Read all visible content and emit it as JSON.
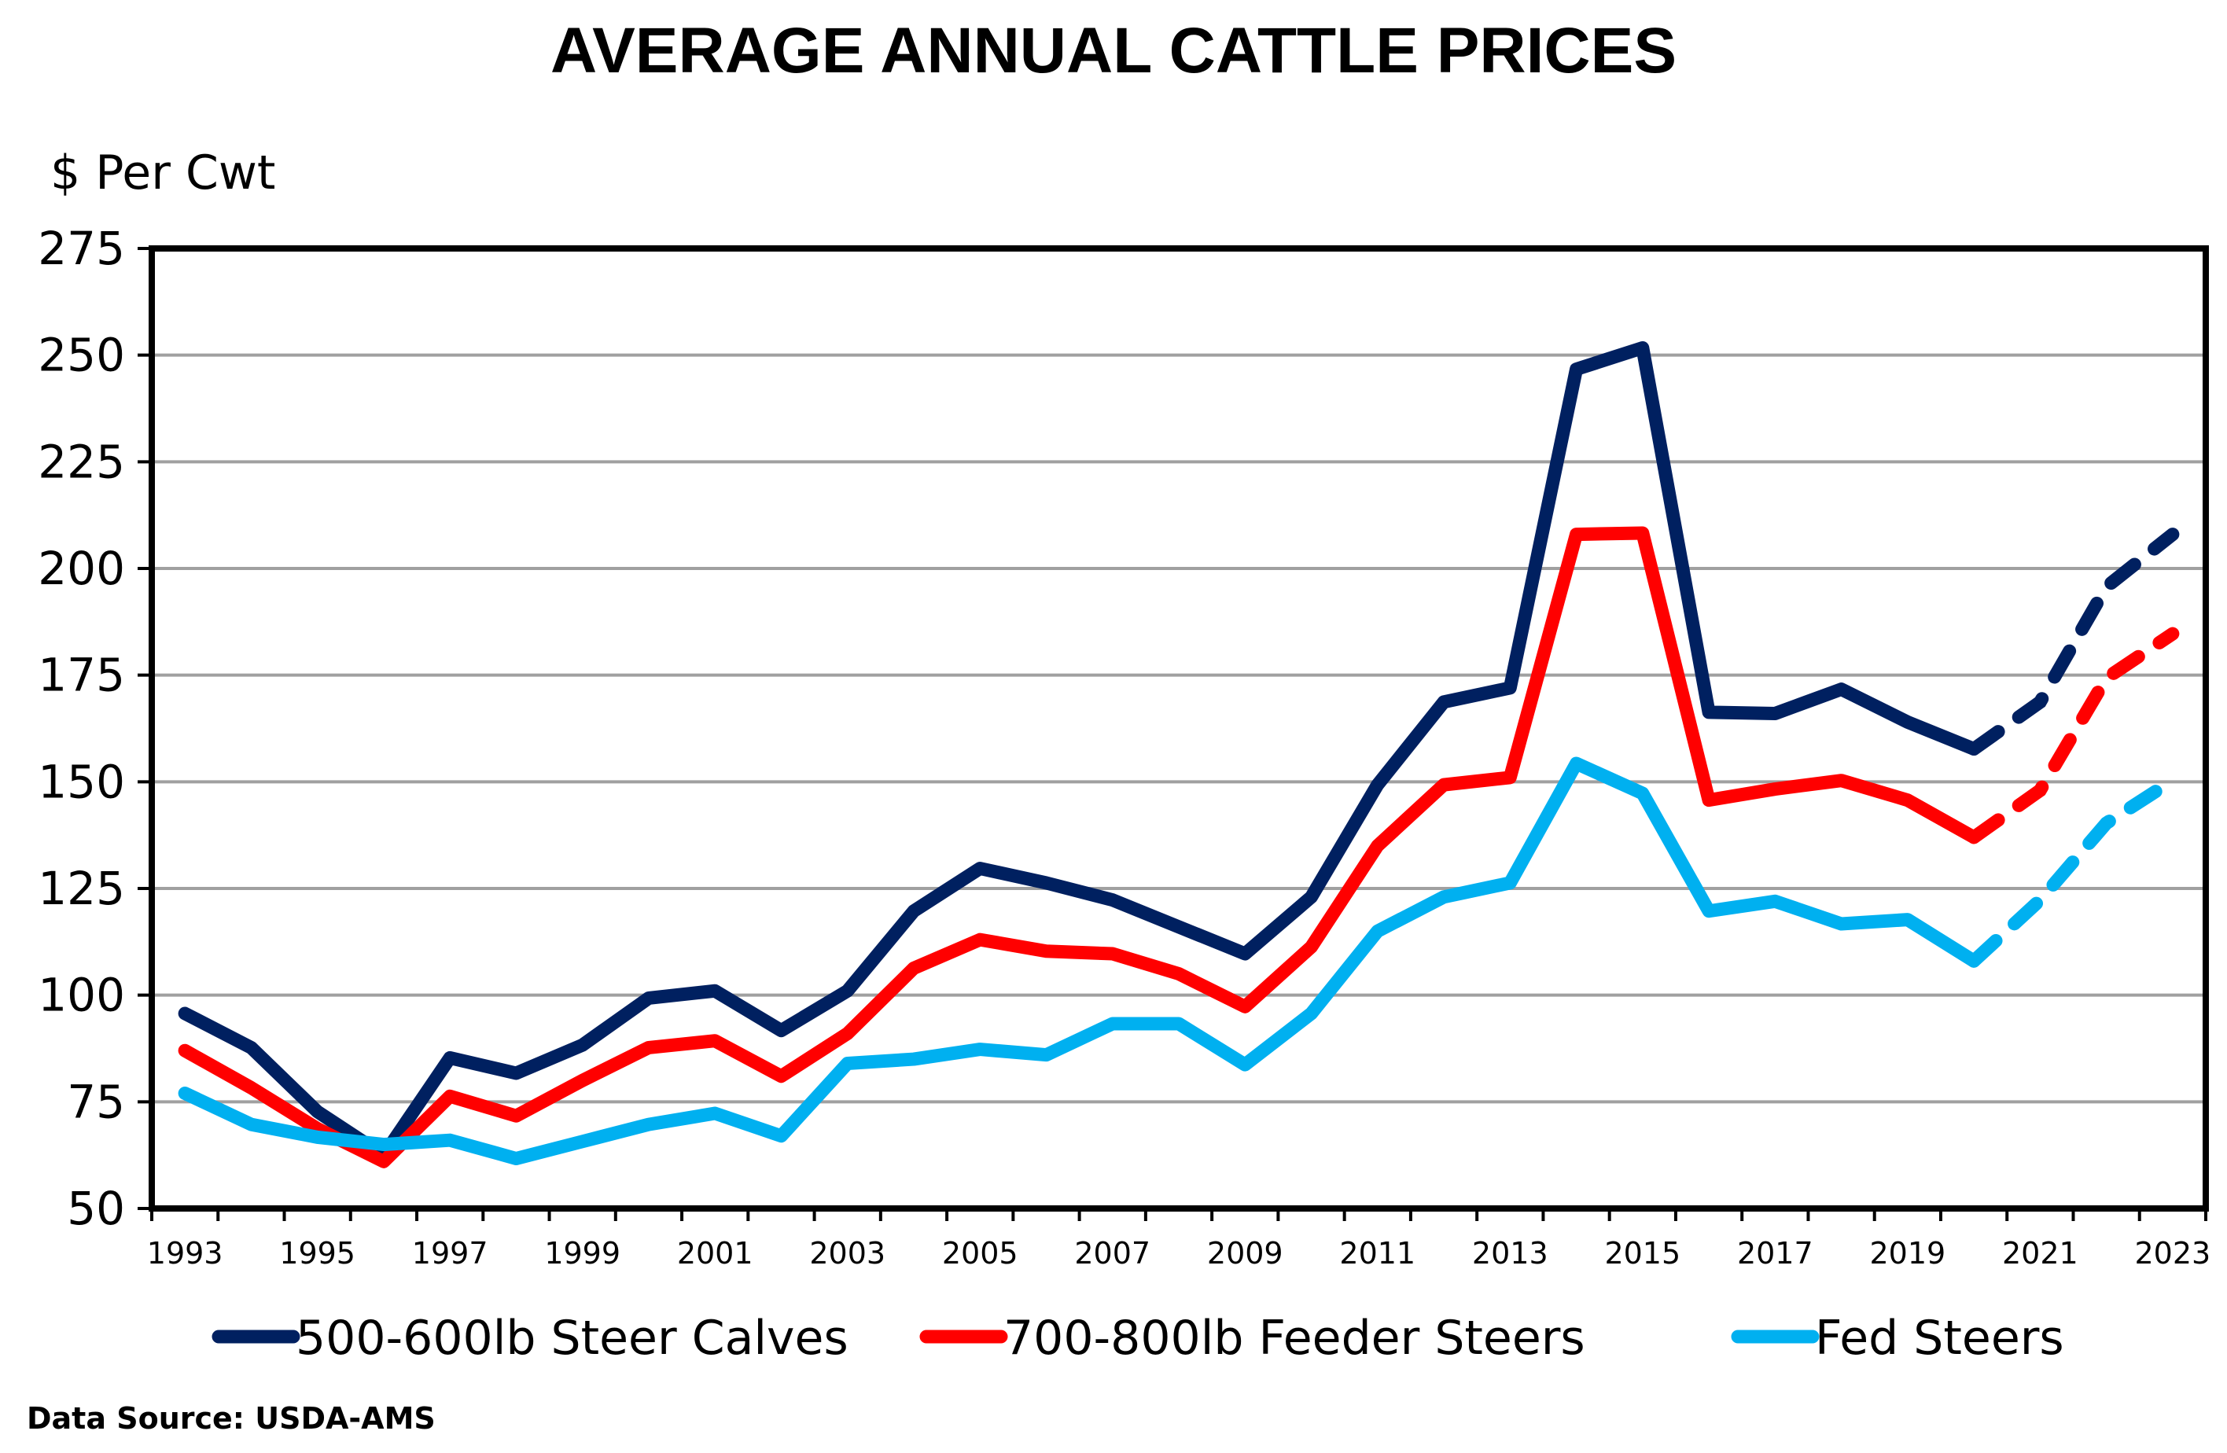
{
  "chart_data": {
    "type": "line",
    "title": "AVERAGE ANNUAL CATTLE PRICES",
    "ylabel": "$ Per Cwt",
    "xlabel": "",
    "ylim": [
      50,
      275
    ],
    "yticks": [
      50,
      75,
      100,
      125,
      150,
      175,
      200,
      225,
      250,
      275
    ],
    "x": [
      1993,
      1994,
      1995,
      1996,
      1997,
      1998,
      1999,
      2000,
      2001,
      2002,
      2003,
      2004,
      2005,
      2006,
      2007,
      2008,
      2009,
      2010,
      2011,
      2012,
      2013,
      2014,
      2015,
      2016,
      2017,
      2018,
      2019,
      2020,
      2021,
      2022,
      2023
    ],
    "xtick_labels": [
      "1993",
      "1995",
      "1997",
      "1999",
      "2001",
      "2003",
      "2005",
      "2007",
      "2009",
      "2011",
      "2013",
      "2015",
      "2017",
      "2019",
      "2021",
      "2023"
    ],
    "forecast_start": 2020,
    "grid": true,
    "legend_position": "bottom",
    "series": [
      {
        "name": "500-600lb Steer Calves",
        "color": "#002060",
        "values": [
          95.7,
          87.7,
          72.7,
          62.5,
          85.3,
          81.7,
          88.3,
          99.3,
          101.0,
          91.7,
          101.0,
          119.7,
          129.7,
          126.3,
          122.3,
          116.0,
          109.7,
          123.0,
          149.3,
          168.7,
          172.0,
          246.7,
          251.7,
          166.3,
          166.0,
          171.7,
          164.0,
          157.7,
          168.7,
          195.7,
          208.0
        ]
      },
      {
        "name": "700-800lb Feeder Steers",
        "color": "#FF0000",
        "values": [
          87.0,
          78.3,
          68.7,
          61.0,
          76.3,
          71.7,
          80.0,
          87.7,
          89.3,
          81.0,
          91.0,
          106.3,
          113.0,
          110.3,
          109.7,
          105.0,
          97.3,
          111.3,
          135.0,
          149.3,
          151.0,
          208.0,
          208.3,
          145.7,
          148.3,
          150.3,
          145.7,
          137.0,
          148.0,
          174.3,
          184.7
        ]
      },
      {
        "name": "Fed Steers",
        "color": "#00B0F0",
        "values": [
          77.0,
          69.7,
          66.7,
          65.0,
          66.0,
          61.7,
          65.7,
          69.7,
          72.3,
          67.0,
          84.0,
          85.0,
          87.3,
          86.0,
          93.3,
          93.3,
          83.7,
          95.7,
          115.0,
          123.0,
          126.3,
          154.3,
          147.3,
          119.7,
          122.0,
          116.7,
          117.7,
          108.0,
          122.3,
          140.3,
          150.3
        ]
      }
    ],
    "source": "Data Source: USDA-AMS"
  }
}
